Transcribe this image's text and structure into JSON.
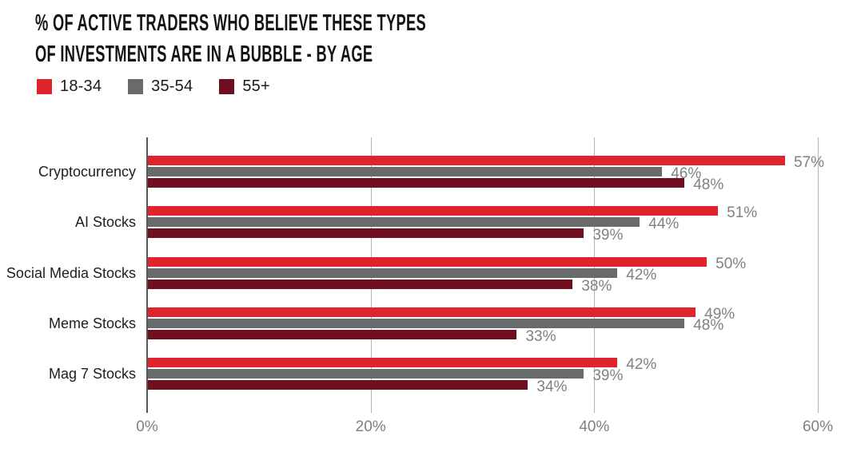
{
  "title": {
    "line1": "% OF ACTIVE TRADERS WHO BELIEVE THESE TYPES",
    "line2": "OF INVESTMENTS ARE IN A BUBBLE - BY AGE"
  },
  "legend": {
    "items": [
      {
        "label": "18-34",
        "color": "#e0242c"
      },
      {
        "label": "35-54",
        "color": "#696a6c"
      },
      {
        "label": "55+",
        "color": "#6f0f1f"
      }
    ]
  },
  "colors": {
    "accent_red": "#e0242c",
    "gray": "#696a6c",
    "dark_red": "#6f0f1f",
    "axis_line": "#55575a",
    "gridline": "#b3b4b6",
    "label_gray": "#7e8084",
    "title_black": "#131313"
  },
  "chart_data": {
    "type": "bar",
    "orientation": "horizontal",
    "title": "% OF ACTIVE TRADERS WHO BELIEVE THESE TYPES OF INVESTMENTS ARE IN A BUBBLE - BY AGE",
    "categories": [
      "Cryptocurrency",
      "AI Stocks",
      "Social Media Stocks",
      "Meme Stocks",
      "Mag 7 Stocks"
    ],
    "series": [
      {
        "name": "18-34",
        "color": "#e0242c",
        "values": [
          57,
          51,
          50,
          49,
          42
        ]
      },
      {
        "name": "35-54",
        "color": "#696a6c",
        "values": [
          46,
          44,
          42,
          48,
          39
        ]
      },
      {
        "name": "55+",
        "color": "#6f0f1f",
        "values": [
          48,
          39,
          38,
          33,
          34
        ]
      }
    ],
    "value_suffix": "%",
    "xlim": [
      0,
      60
    ],
    "x_ticks": [
      {
        "value": 0,
        "label": "0%"
      },
      {
        "value": 20,
        "label": "20%"
      },
      {
        "value": 40,
        "label": "40%"
      },
      {
        "value": 60,
        "label": "60%"
      }
    ],
    "grid": true,
    "legend_position": "top-left",
    "data_labels": true
  }
}
